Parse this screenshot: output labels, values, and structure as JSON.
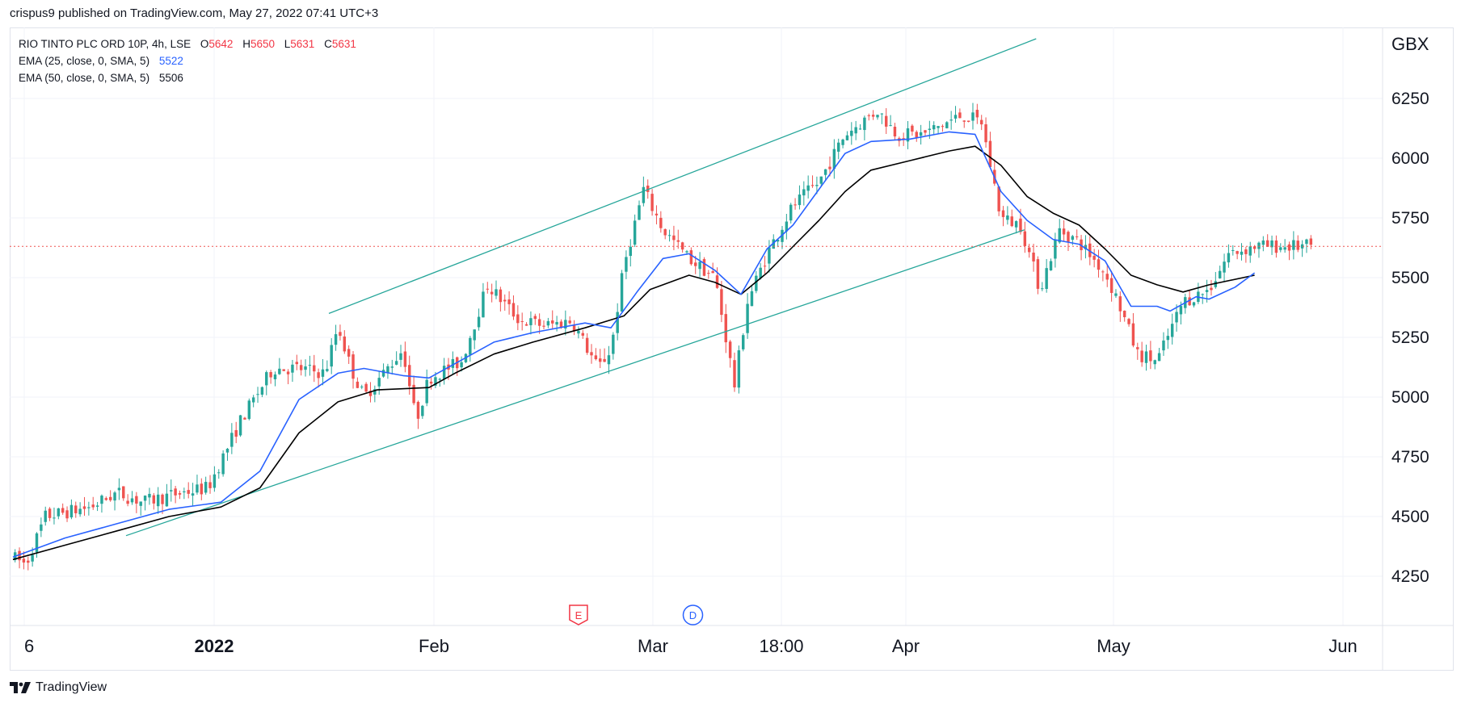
{
  "header": {
    "publisher": "crispus9",
    "published_text": "crispus9 published on TradingView.com, May 27, 2022 07:41 UTC+3"
  },
  "legend": {
    "symbol": "RIO TINTO PLC ORD 10P, 4h, LSE",
    "o_label": "O",
    "o_value": "5642",
    "h_label": "H",
    "h_value": "5650",
    "l_label": "L",
    "l_value": "5631",
    "c_label": "C",
    "c_value": "5631",
    "ema25_label": "EMA (25, close, 0, SMA, 5)",
    "ema25_value": "5522",
    "ema50_label": "EMA (50, close, 0, SMA, 5)",
    "ema50_value": "5506"
  },
  "footer": {
    "brand": "TradingView"
  },
  "colors": {
    "up": "#26a69a",
    "down": "#ef5350",
    "ema25": "#2962ff",
    "ema50": "#000000",
    "channel": "#26a69a",
    "price_line": "#ef5350",
    "grid": "#f0f3fa"
  },
  "chart_data": {
    "type": "candlestick",
    "title": "RIO TINTO PLC ORD 10P, 4h, LSE",
    "currency_label": "GBX",
    "y_ticks": [
      "6250",
      "6000",
      "5750",
      "5500",
      "5250",
      "5000",
      "4750",
      "4500",
      "4250"
    ],
    "x_ticks": [
      "6",
      "2022",
      "Feb",
      "Mar",
      "18:00",
      "Apr",
      "May",
      "Jun"
    ],
    "ylim": [
      4000,
      6500
    ],
    "current_price": 5631,
    "events": [
      {
        "label": "E",
        "x": 0.435
      },
      {
        "label": "D",
        "x": 0.523
      }
    ],
    "channel": {
      "upper": [
        [
          0.243,
          5350
        ],
        [
          0.787,
          6500
        ]
      ],
      "lower": [
        [
          0.087,
          4420
        ],
        [
          0.778,
          5700
        ]
      ]
    },
    "ema25_points": [
      [
        0.0,
        4330
      ],
      [
        0.04,
        4410
      ],
      [
        0.08,
        4470
      ],
      [
        0.12,
        4530
      ],
      [
        0.16,
        4560
      ],
      [
        0.19,
        4690
      ],
      [
        0.22,
        4990
      ],
      [
        0.25,
        5100
      ],
      [
        0.27,
        5120
      ],
      [
        0.3,
        5090
      ],
      [
        0.32,
        5080
      ],
      [
        0.34,
        5140
      ],
      [
        0.37,
        5230
      ],
      [
        0.4,
        5270
      ],
      [
        0.44,
        5310
      ],
      [
        0.46,
        5290
      ],
      [
        0.48,
        5440
      ],
      [
        0.5,
        5580
      ],
      [
        0.52,
        5600
      ],
      [
        0.54,
        5530
      ],
      [
        0.56,
        5430
      ],
      [
        0.58,
        5620
      ],
      [
        0.6,
        5720
      ],
      [
        0.62,
        5870
      ],
      [
        0.64,
        6020
      ],
      [
        0.66,
        6070
      ],
      [
        0.69,
        6080
      ],
      [
        0.72,
        6110
      ],
      [
        0.74,
        6100
      ],
      [
        0.76,
        5860
      ],
      [
        0.78,
        5740
      ],
      [
        0.8,
        5660
      ],
      [
        0.82,
        5640
      ],
      [
        0.84,
        5570
      ],
      [
        0.86,
        5380
      ],
      [
        0.88,
        5380
      ],
      [
        0.89,
        5360
      ],
      [
        0.91,
        5420
      ],
      [
        0.92,
        5410
      ],
      [
        0.94,
        5460
      ],
      [
        0.955,
        5520
      ]
    ],
    "ema50_points": [
      [
        0.0,
        4320
      ],
      [
        0.04,
        4380
      ],
      [
        0.08,
        4440
      ],
      [
        0.12,
        4500
      ],
      [
        0.16,
        4540
      ],
      [
        0.19,
        4620
      ],
      [
        0.22,
        4850
      ],
      [
        0.25,
        4980
      ],
      [
        0.28,
        5030
      ],
      [
        0.32,
        5040
      ],
      [
        0.34,
        5100
      ],
      [
        0.37,
        5180
      ],
      [
        0.4,
        5230
      ],
      [
        0.44,
        5290
      ],
      [
        0.47,
        5340
      ],
      [
        0.49,
        5450
      ],
      [
        0.52,
        5510
      ],
      [
        0.54,
        5480
      ],
      [
        0.56,
        5430
      ],
      [
        0.58,
        5520
      ],
      [
        0.6,
        5630
      ],
      [
        0.62,
        5740
      ],
      [
        0.64,
        5860
      ],
      [
        0.66,
        5950
      ],
      [
        0.69,
        5990
      ],
      [
        0.72,
        6030
      ],
      [
        0.74,
        6050
      ],
      [
        0.76,
        5970
      ],
      [
        0.78,
        5840
      ],
      [
        0.8,
        5770
      ],
      [
        0.82,
        5720
      ],
      [
        0.84,
        5620
      ],
      [
        0.86,
        5510
      ],
      [
        0.88,
        5470
      ],
      [
        0.9,
        5440
      ],
      [
        0.92,
        5470
      ],
      [
        0.955,
        5510
      ]
    ],
    "close_path": [
      [
        0.0,
        4330
      ],
      [
        0.01,
        4300
      ],
      [
        0.025,
        4500
      ],
      [
        0.06,
        4540
      ],
      [
        0.08,
        4600
      ],
      [
        0.1,
        4560
      ],
      [
        0.13,
        4600
      ],
      [
        0.15,
        4620
      ],
      [
        0.175,
        4900
      ],
      [
        0.2,
        5120
      ],
      [
        0.22,
        5120
      ],
      [
        0.24,
        5100
      ],
      [
        0.25,
        5300
      ],
      [
        0.26,
        5120
      ],
      [
        0.27,
        5000
      ],
      [
        0.285,
        5100
      ],
      [
        0.3,
        5200
      ],
      [
        0.31,
        4900
      ],
      [
        0.32,
        5080
      ],
      [
        0.345,
        5150
      ],
      [
        0.365,
        5470
      ],
      [
        0.39,
        5320
      ],
      [
        0.41,
        5300
      ],
      [
        0.43,
        5320
      ],
      [
        0.45,
        5120
      ],
      [
        0.46,
        5200
      ],
      [
        0.47,
        5550
      ],
      [
        0.485,
        5870
      ],
      [
        0.5,
        5700
      ],
      [
        0.52,
        5580
      ],
      [
        0.54,
        5500
      ],
      [
        0.555,
        5050
      ],
      [
        0.565,
        5400
      ],
      [
        0.58,
        5600
      ],
      [
        0.6,
        5800
      ],
      [
        0.62,
        5900
      ],
      [
        0.64,
        6100
      ],
      [
        0.665,
        6200
      ],
      [
        0.68,
        6100
      ],
      [
        0.7,
        6100
      ],
      [
        0.73,
        6180
      ],
      [
        0.745,
        6150
      ],
      [
        0.76,
        5750
      ],
      [
        0.775,
        5720
      ],
      [
        0.79,
        5450
      ],
      [
        0.805,
        5700
      ],
      [
        0.82,
        5650
      ],
      [
        0.84,
        5520
      ],
      [
        0.85,
        5400
      ],
      [
        0.865,
        5180
      ],
      [
        0.88,
        5150
      ],
      [
        0.9,
        5400
      ],
      [
        0.92,
        5450
      ],
      [
        0.935,
        5600
      ],
      [
        0.955,
        5631
      ]
    ]
  }
}
